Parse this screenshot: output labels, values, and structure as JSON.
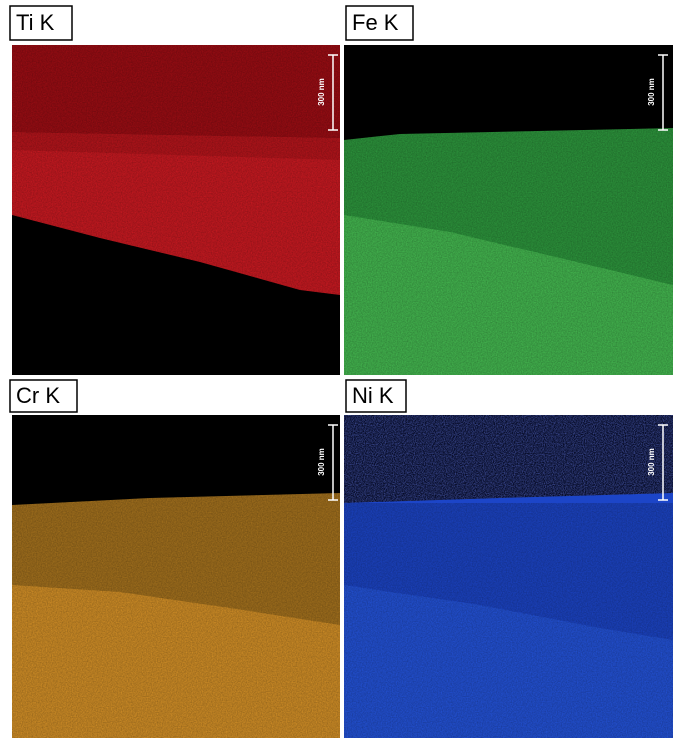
{
  "panels": [
    {
      "label": "Ti K",
      "scale_bar": "300 nm"
    },
    {
      "label": "Fe K",
      "scale_bar": "300 nm"
    },
    {
      "label": "Cr K",
      "scale_bar": "300 nm"
    },
    {
      "label": "Ni K",
      "scale_bar": "300 nm"
    }
  ]
}
